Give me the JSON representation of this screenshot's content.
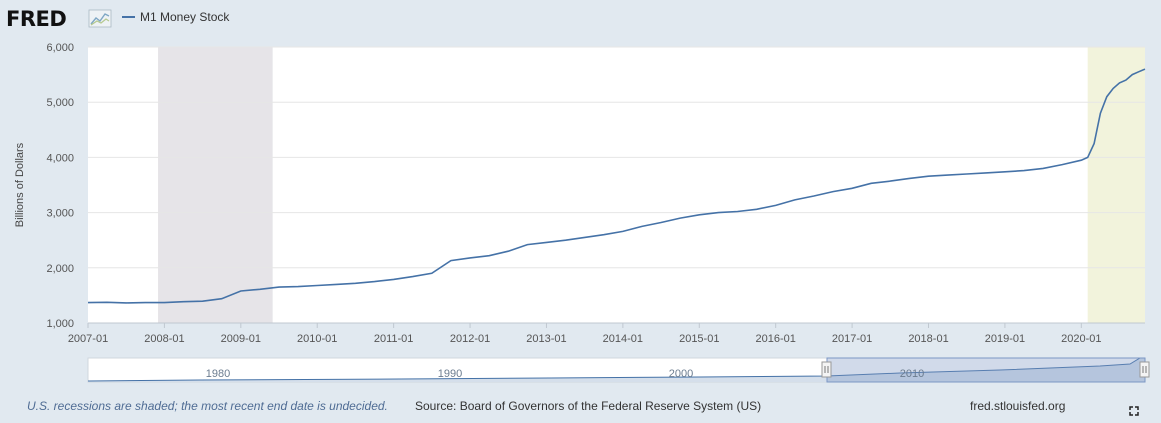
{
  "header": {
    "logo_text": "FRED",
    "legend_label": "M1 Money Stock"
  },
  "footer": {
    "recession_note": "U.S. recessions are shaded; the most recent end date is undecided.",
    "source": "Source: Board of Governors of the Federal Reserve System (US)",
    "site": "fred.stlouisfed.org"
  },
  "navigator": {
    "labels": [
      "1980",
      "1990",
      "2000",
      "2010"
    ]
  },
  "colors": {
    "series": "#4572a7",
    "recession_past": "#e6e4e8",
    "recession_current": "#f2f3dc",
    "background": "#e1e9f0",
    "plot_background": "#ffffff"
  },
  "icons": {
    "logo": "fred-trend-icon",
    "fullscreen": "fullscreen-icon"
  },
  "chart_data": {
    "type": "line",
    "title": "",
    "ylabel": "Billions of Dollars",
    "xlabel": "",
    "ylim": [
      1000,
      6000
    ],
    "yticks": [
      1000,
      2000,
      3000,
      4000,
      5000,
      6000
    ],
    "ytick_labels": [
      "1,000",
      "2,000",
      "3,000",
      "4,000",
      "5,000",
      "6,000"
    ],
    "xlim": [
      "2007-01",
      "2020-11"
    ],
    "xtick_labels": [
      "2007-01",
      "2008-01",
      "2009-01",
      "2010-01",
      "2011-01",
      "2012-01",
      "2013-01",
      "2014-01",
      "2015-01",
      "2016-01",
      "2017-01",
      "2018-01",
      "2019-01",
      "2020-01"
    ],
    "grid": true,
    "legend": "top-left",
    "recessions": [
      {
        "start": "2007-12",
        "end": "2009-06"
      },
      {
        "start": "2020-02",
        "end": "2020-11"
      }
    ],
    "series": [
      {
        "name": "M1 Money Stock",
        "x": [
          "2007-01",
          "2007-04",
          "2007-07",
          "2007-10",
          "2008-01",
          "2008-04",
          "2008-07",
          "2008-10",
          "2009-01",
          "2009-04",
          "2009-07",
          "2009-10",
          "2010-01",
          "2010-04",
          "2010-07",
          "2010-10",
          "2011-01",
          "2011-04",
          "2011-07",
          "2011-10",
          "2012-01",
          "2012-04",
          "2012-07",
          "2012-10",
          "2013-01",
          "2013-04",
          "2013-07",
          "2013-10",
          "2014-01",
          "2014-04",
          "2014-07",
          "2014-10",
          "2015-01",
          "2015-04",
          "2015-07",
          "2015-10",
          "2016-01",
          "2016-04",
          "2016-07",
          "2016-10",
          "2017-01",
          "2017-04",
          "2017-07",
          "2017-10",
          "2018-01",
          "2018-04",
          "2018-07",
          "2018-10",
          "2019-01",
          "2019-04",
          "2019-07",
          "2019-10",
          "2020-01",
          "2020-02",
          "2020-03",
          "2020-04",
          "2020-05",
          "2020-06",
          "2020-07",
          "2020-08",
          "2020-09",
          "2020-10",
          "2020-11"
        ],
        "values": [
          1370,
          1375,
          1365,
          1370,
          1370,
          1385,
          1395,
          1440,
          1580,
          1610,
          1650,
          1660,
          1680,
          1700,
          1720,
          1750,
          1790,
          1840,
          1900,
          2130,
          2180,
          2220,
          2300,
          2420,
          2460,
          2500,
          2550,
          2600,
          2660,
          2750,
          2820,
          2900,
          2960,
          3000,
          3020,
          3060,
          3130,
          3230,
          3300,
          3380,
          3440,
          3530,
          3570,
          3620,
          3660,
          3680,
          3700,
          3720,
          3740,
          3760,
          3800,
          3870,
          3950,
          4000,
          4250,
          4800,
          5100,
          5250,
          5350,
          5400,
          5500,
          5550,
          5600
        ]
      }
    ]
  }
}
